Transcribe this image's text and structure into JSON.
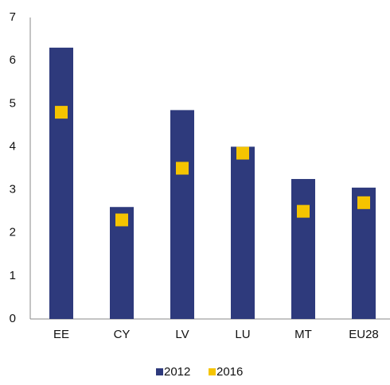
{
  "chart_data": {
    "type": "bar",
    "categories": [
      "EE",
      "CY",
      "LV",
      "LU",
      "MT",
      "EU28"
    ],
    "series": [
      {
        "name": "2012",
        "color": "#2e3a7c",
        "mark": "bar",
        "values": [
          6.3,
          2.6,
          4.85,
          4.0,
          3.25,
          3.05
        ]
      },
      {
        "name": "2016",
        "color": "#f5c400",
        "mark": "square",
        "values": [
          4.8,
          2.3,
          3.5,
          3.85,
          2.5,
          2.7
        ]
      }
    ],
    "ylim": [
      0,
      7
    ],
    "yticks": [
      0,
      1,
      2,
      3,
      4,
      5,
      6,
      7
    ],
    "grid": false,
    "legend": "bottom"
  }
}
